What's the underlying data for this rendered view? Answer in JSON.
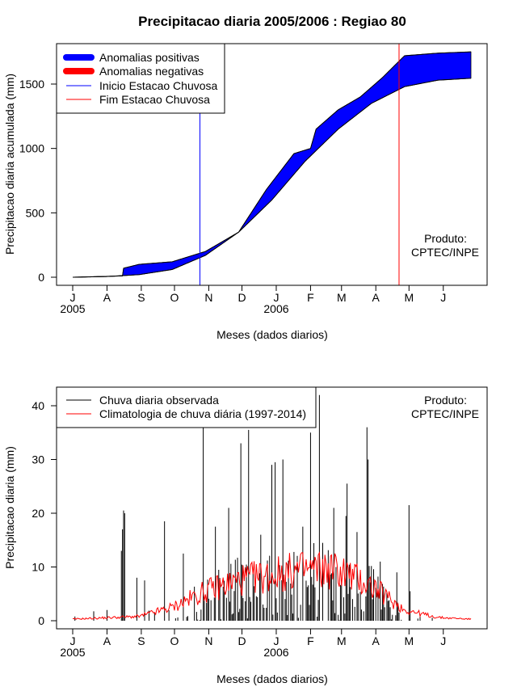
{
  "chart_data": [
    {
      "type": "area",
      "title": "Precipitacao diaria 2005/2006 : Regiao 80",
      "xlabel": "Meses (dados diarios)",
      "ylabel": "Precipitacao diaria acumulada (mm)",
      "ylim": [
        -60,
        1830
      ],
      "yticks": [
        0,
        500,
        1000,
        1500
      ],
      "month_ticks": [
        "J",
        "A",
        "S",
        "O",
        "N",
        "D",
        "J",
        "F",
        "M",
        "A",
        "M",
        "J"
      ],
      "year_labels": [
        "2005",
        "2006"
      ],
      "legend": [
        "Anomalias positivas",
        "Anomalias negativas",
        "Inicio Estacao Chuvosa",
        "Fim Estacao Chuvosa"
      ],
      "colors": {
        "positive": "#0000ff",
        "negative": "#ff0000",
        "start": "#0000ff",
        "end": "#ff0000"
      },
      "rainy_season_start_day": 115,
      "rainy_season_end_day": 295,
      "annotation": [
        "Produto:",
        "CPTEC/INPE"
      ],
      "observed_cumulative": {
        "day": [
          0,
          45,
          46,
          60,
          90,
          120,
          150,
          175,
          200,
          215,
          220,
          240,
          260,
          280,
          300,
          330,
          360
        ],
        "mm": [
          0,
          10,
          70,
          100,
          120,
          200,
          350,
          680,
          960,
          1000,
          1150,
          1300,
          1400,
          1550,
          1720,
          1740,
          1750
        ]
      },
      "climatology_cumulative": {
        "day": [
          0,
          30,
          60,
          90,
          120,
          150,
          180,
          210,
          240,
          270,
          300,
          330,
          360
        ],
        "mm": [
          0,
          5,
          20,
          60,
          170,
          350,
          600,
          900,
          1150,
          1350,
          1480,
          1530,
          1545
        ]
      }
    },
    {
      "type": "bar",
      "title": "",
      "xlabel": "Meses (dados diarios)",
      "ylabel": "Precipitacao diaria (mm)",
      "ylim": [
        -1.6,
        43
      ],
      "yticks": [
        0,
        10,
        20,
        30,
        40
      ],
      "month_ticks": [
        "J",
        "A",
        "S",
        "O",
        "N",
        "D",
        "J",
        "F",
        "M",
        "A",
        "M",
        "J"
      ],
      "year_labels": [
        "2005",
        "2006"
      ],
      "legend": [
        "Chuva diaria observada",
        "Climatologia de chuva diária (1997-2014)"
      ],
      "colors": {
        "observed": "#000000",
        "climatology": "#ff0000"
      },
      "annotation": [
        "Produto:",
        "CPTEC/INPE"
      ],
      "observed_peaks": [
        {
          "day": 44,
          "mm": 13
        },
        {
          "day": 45,
          "mm": 17
        },
        {
          "day": 46,
          "mm": 20.5
        },
        {
          "day": 47,
          "mm": 20
        },
        {
          "day": 58,
          "mm": 8
        },
        {
          "day": 65,
          "mm": 7.5
        },
        {
          "day": 83,
          "mm": 18.5
        },
        {
          "day": 100,
          "mm": 12.5
        },
        {
          "day": 118,
          "mm": 36
        },
        {
          "day": 129,
          "mm": 17.5
        },
        {
          "day": 141,
          "mm": 21
        },
        {
          "day": 152,
          "mm": 33
        },
        {
          "day": 159,
          "mm": 35.5
        },
        {
          "day": 170,
          "mm": 16
        },
        {
          "day": 180,
          "mm": 29
        },
        {
          "day": 183,
          "mm": 29.5
        },
        {
          "day": 190,
          "mm": 30
        },
        {
          "day": 208,
          "mm": 17.5
        },
        {
          "day": 215,
          "mm": 35
        },
        {
          "day": 223,
          "mm": 42
        },
        {
          "day": 236,
          "mm": 21
        },
        {
          "day": 247,
          "mm": 19.5
        },
        {
          "day": 248,
          "mm": 25.5
        },
        {
          "day": 257,
          "mm": 16.5
        },
        {
          "day": 266,
          "mm": 36
        },
        {
          "day": 267,
          "mm": 30
        },
        {
          "day": 278,
          "mm": 11
        },
        {
          "day": 293,
          "mm": 9
        },
        {
          "day": 304,
          "mm": 21.5
        },
        {
          "day": 305,
          "mm": 5.5
        }
      ],
      "climatology_profile": {
        "day": [
          0,
          60,
          90,
          120,
          150,
          180,
          210,
          240,
          270,
          300,
          330,
          360
        ],
        "mm": [
          0.3,
          0.8,
          2.5,
          5.5,
          7.5,
          8.5,
          9.5,
          9.5,
          6.5,
          2,
          0.6,
          0.3
        ]
      }
    }
  ]
}
